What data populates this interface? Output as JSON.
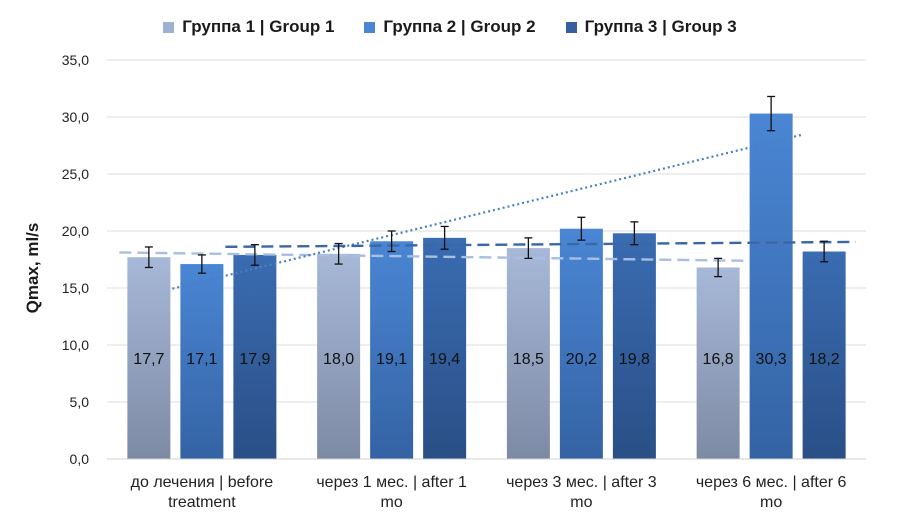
{
  "chart_data": {
    "type": "bar",
    "title": "",
    "xlabel": "",
    "ylabel": "Qmax, ml/s",
    "ylim": [
      0,
      35
    ],
    "yticks": [
      "0,0",
      "5,0",
      "10,0",
      "15,0",
      "20,0",
      "25,0",
      "30,0",
      "35,0"
    ],
    "ytick_values": [
      0,
      5,
      10,
      15,
      20,
      25,
      30,
      35
    ],
    "grid": true,
    "legend_position": "top",
    "categories": [
      [
        "до лечения | before",
        "treatment"
      ],
      [
        "через 1 мес. | after 1",
        "mo"
      ],
      [
        "через 3 мес. | after 3",
        "mo"
      ],
      [
        "через 6 мес. | after 6",
        "mo"
      ]
    ],
    "series": [
      {
        "name": "Группа 1 | Group 1",
        "values": [
          17.7,
          18.0,
          18.5,
          16.8
        ],
        "labels": [
          "17,7",
          "18,0",
          "18,5",
          "16,8"
        ],
        "errors": [
          0.9,
          0.9,
          0.9,
          0.8
        ],
        "color_top": "#a7b8d8",
        "color_bottom": "#7d8aa4",
        "trendline": "dashed",
        "trend_color": "#a9bfe0"
      },
      {
        "name": "Группа 2 | Group 2",
        "values": [
          17.1,
          19.1,
          20.2,
          30.3
        ],
        "labels": [
          "17,1",
          "19,1",
          "20,2",
          "30,3"
        ],
        "errors": [
          0.8,
          0.9,
          1.0,
          1.5
        ],
        "color_top": "#4a86d4",
        "color_bottom": "#3463a4",
        "trendline": "dotted",
        "trend_color": "#4a7fc1"
      },
      {
        "name": "Группа 3 | Group 3",
        "values": [
          17.9,
          19.4,
          19.8,
          18.2
        ],
        "labels": [
          "17,9",
          "19,4",
          "19,8",
          "18,2"
        ],
        "errors": [
          0.9,
          1.0,
          1.0,
          0.9
        ],
        "color_top": "#3a6cb2",
        "color_bottom": "#2a4f86",
        "trendline": "dashed",
        "trend_color": "#3b67a5"
      }
    ]
  }
}
